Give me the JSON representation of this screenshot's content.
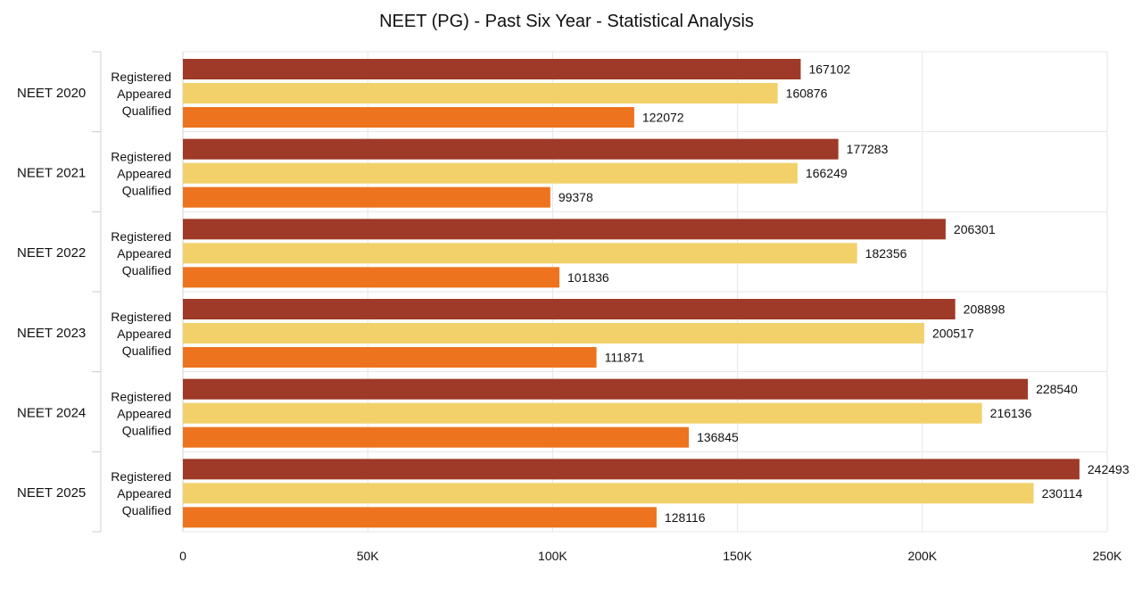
{
  "chart_data": {
    "type": "bar",
    "orientation": "horizontal",
    "title": "NEET (PG) - Past Six Year - Statistical Analysis",
    "categories": [
      "NEET 2020",
      "NEET 2021",
      "NEET 2022",
      "NEET 2023",
      "NEET 2024",
      "NEET 2025"
    ],
    "sub_labels": [
      "Registered",
      "Appeared",
      "Qualified"
    ],
    "series": [
      {
        "name": "Registered",
        "color": "#9E3A27",
        "values": [
          167102,
          177283,
          206301,
          208898,
          228540,
          242493
        ]
      },
      {
        "name": "Appeared",
        "color": "#F2D16B",
        "values": [
          160876,
          166249,
          182356,
          200517,
          216136,
          230114
        ]
      },
      {
        "name": "Qualified",
        "color": "#EE731E",
        "values": [
          122072,
          99378,
          101836,
          111871,
          136845,
          128116
        ]
      }
    ],
    "data_labels": [
      [
        "167102",
        "160876",
        "122072"
      ],
      [
        "177283",
        "166249",
        "99378"
      ],
      [
        "206301",
        "182356",
        "101836"
      ],
      [
        "208898",
        "200517",
        "111871"
      ],
      [
        "228540",
        "216136",
        "136845"
      ],
      [
        "242493",
        "230114",
        "128116"
      ]
    ],
    "xlim": [
      0,
      250000
    ],
    "xticks": [
      0,
      50000,
      100000,
      150000,
      200000,
      250000
    ],
    "xtick_labels": [
      "0",
      "50K",
      "100K",
      "150K",
      "200K",
      "250K"
    ],
    "grid": true,
    "legend": "none"
  }
}
